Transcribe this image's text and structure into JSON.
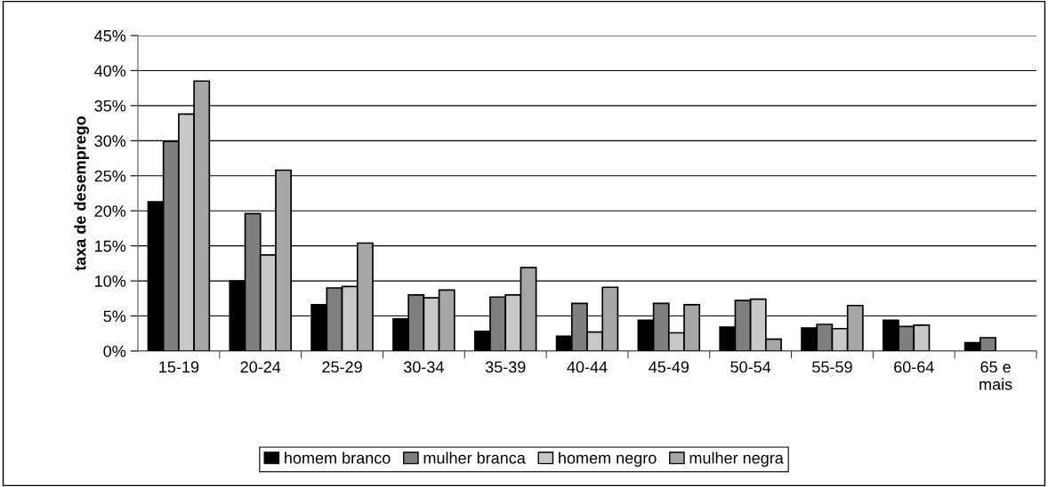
{
  "chart_data": {
    "type": "bar",
    "ylabel": "taxa de desemprego",
    "categories": [
      "15-19",
      "20-24",
      "25-29",
      "30-34",
      "35-39",
      "40-44",
      "45-49",
      "50-54",
      "55-59",
      "60-64",
      "65 e\nmais"
    ],
    "series": [
      {
        "name": "homem branco",
        "color": "#000000",
        "values": [
          21.3,
          10.0,
          6.6,
          4.6,
          2.8,
          2.1,
          4.4,
          3.4,
          3.3,
          4.4,
          1.2
        ]
      },
      {
        "name": "mulher branca",
        "color": "#7f7f7f",
        "values": [
          29.9,
          19.6,
          9.0,
          8.0,
          7.7,
          6.8,
          6.8,
          7.2,
          3.8,
          3.5,
          1.9
        ]
      },
      {
        "name": "homem negro",
        "color": "#c8c8c8",
        "values": [
          33.8,
          13.7,
          9.2,
          7.6,
          8.0,
          2.7,
          2.6,
          7.4,
          3.2,
          3.7,
          null
        ]
      },
      {
        "name": "mulher negra",
        "color": "#a6a6a6",
        "values": [
          38.5,
          25.8,
          15.4,
          8.7,
          11.9,
          9.1,
          6.6,
          1.7,
          6.5,
          null,
          null
        ]
      }
    ],
    "ylim": [
      0,
      45
    ],
    "yticks": [
      {
        "value": 0,
        "label": "0%"
      },
      {
        "value": 5,
        "label": "5%"
      },
      {
        "value": 10,
        "label": "10%"
      },
      {
        "value": 15,
        "label": "15%"
      },
      {
        "value": 20,
        "label": "20%"
      },
      {
        "value": 25,
        "label": "25%"
      },
      {
        "value": 30,
        "label": "30%"
      },
      {
        "value": 35,
        "label": "35%"
      },
      {
        "value": 40,
        "label": "40%"
      },
      {
        "value": 45,
        "label": "45%"
      }
    ],
    "grid": "y",
    "legend": "bottom"
  }
}
